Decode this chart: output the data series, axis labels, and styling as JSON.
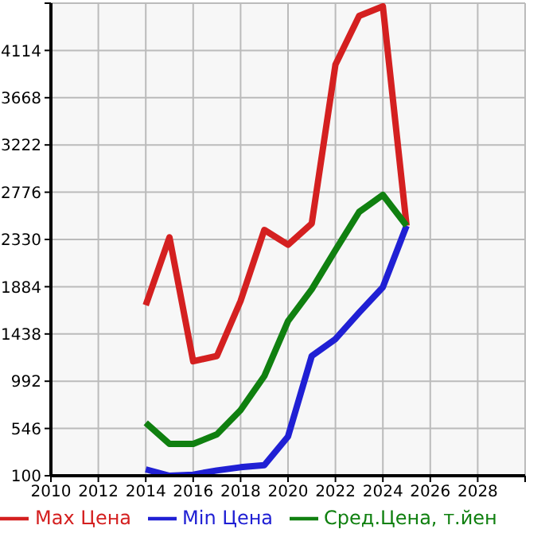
{
  "chart_data": {
    "type": "line",
    "x": [
      2014,
      2015,
      2016,
      2017,
      2018,
      2019,
      2020,
      2021,
      2022,
      2023,
      2024,
      2025
    ],
    "series": [
      {
        "name": "Max Цена",
        "color": "#d42020",
        "values": [
          1710,
          2350,
          1180,
          1230,
          1750,
          2420,
          2280,
          2480,
          3980,
          4440,
          4530,
          2460
        ]
      },
      {
        "name": "Min Цена",
        "color": "#2020d4",
        "values": [
          160,
          100,
          110,
          150,
          180,
          200,
          470,
          1230,
          1390,
          1640,
          1880,
          2460
        ]
      },
      {
        "name": "Сред.Цена, т.йен",
        "color": "#108010",
        "values": [
          600,
          400,
          400,
          490,
          720,
          1040,
          1560,
          1860,
          2230,
          2590,
          2750,
          2460
        ]
      }
    ],
    "xlim": [
      2010,
      2030
    ],
    "xticks": [
      2010,
      2012,
      2014,
      2016,
      2018,
      2020,
      2022,
      2024,
      2026,
      2028,
      {
        "value": 2030,
        "label": null
      }
    ],
    "ylim": [
      100,
      4560
    ],
    "yticks": [
      100,
      546,
      992,
      1438,
      1884,
      2330,
      2776,
      3222,
      3668,
      4114,
      {
        "value": 4560,
        "label": null
      }
    ],
    "grid": true,
    "legend": "bottom",
    "marker": "none",
    "line_style": "solid"
  }
}
